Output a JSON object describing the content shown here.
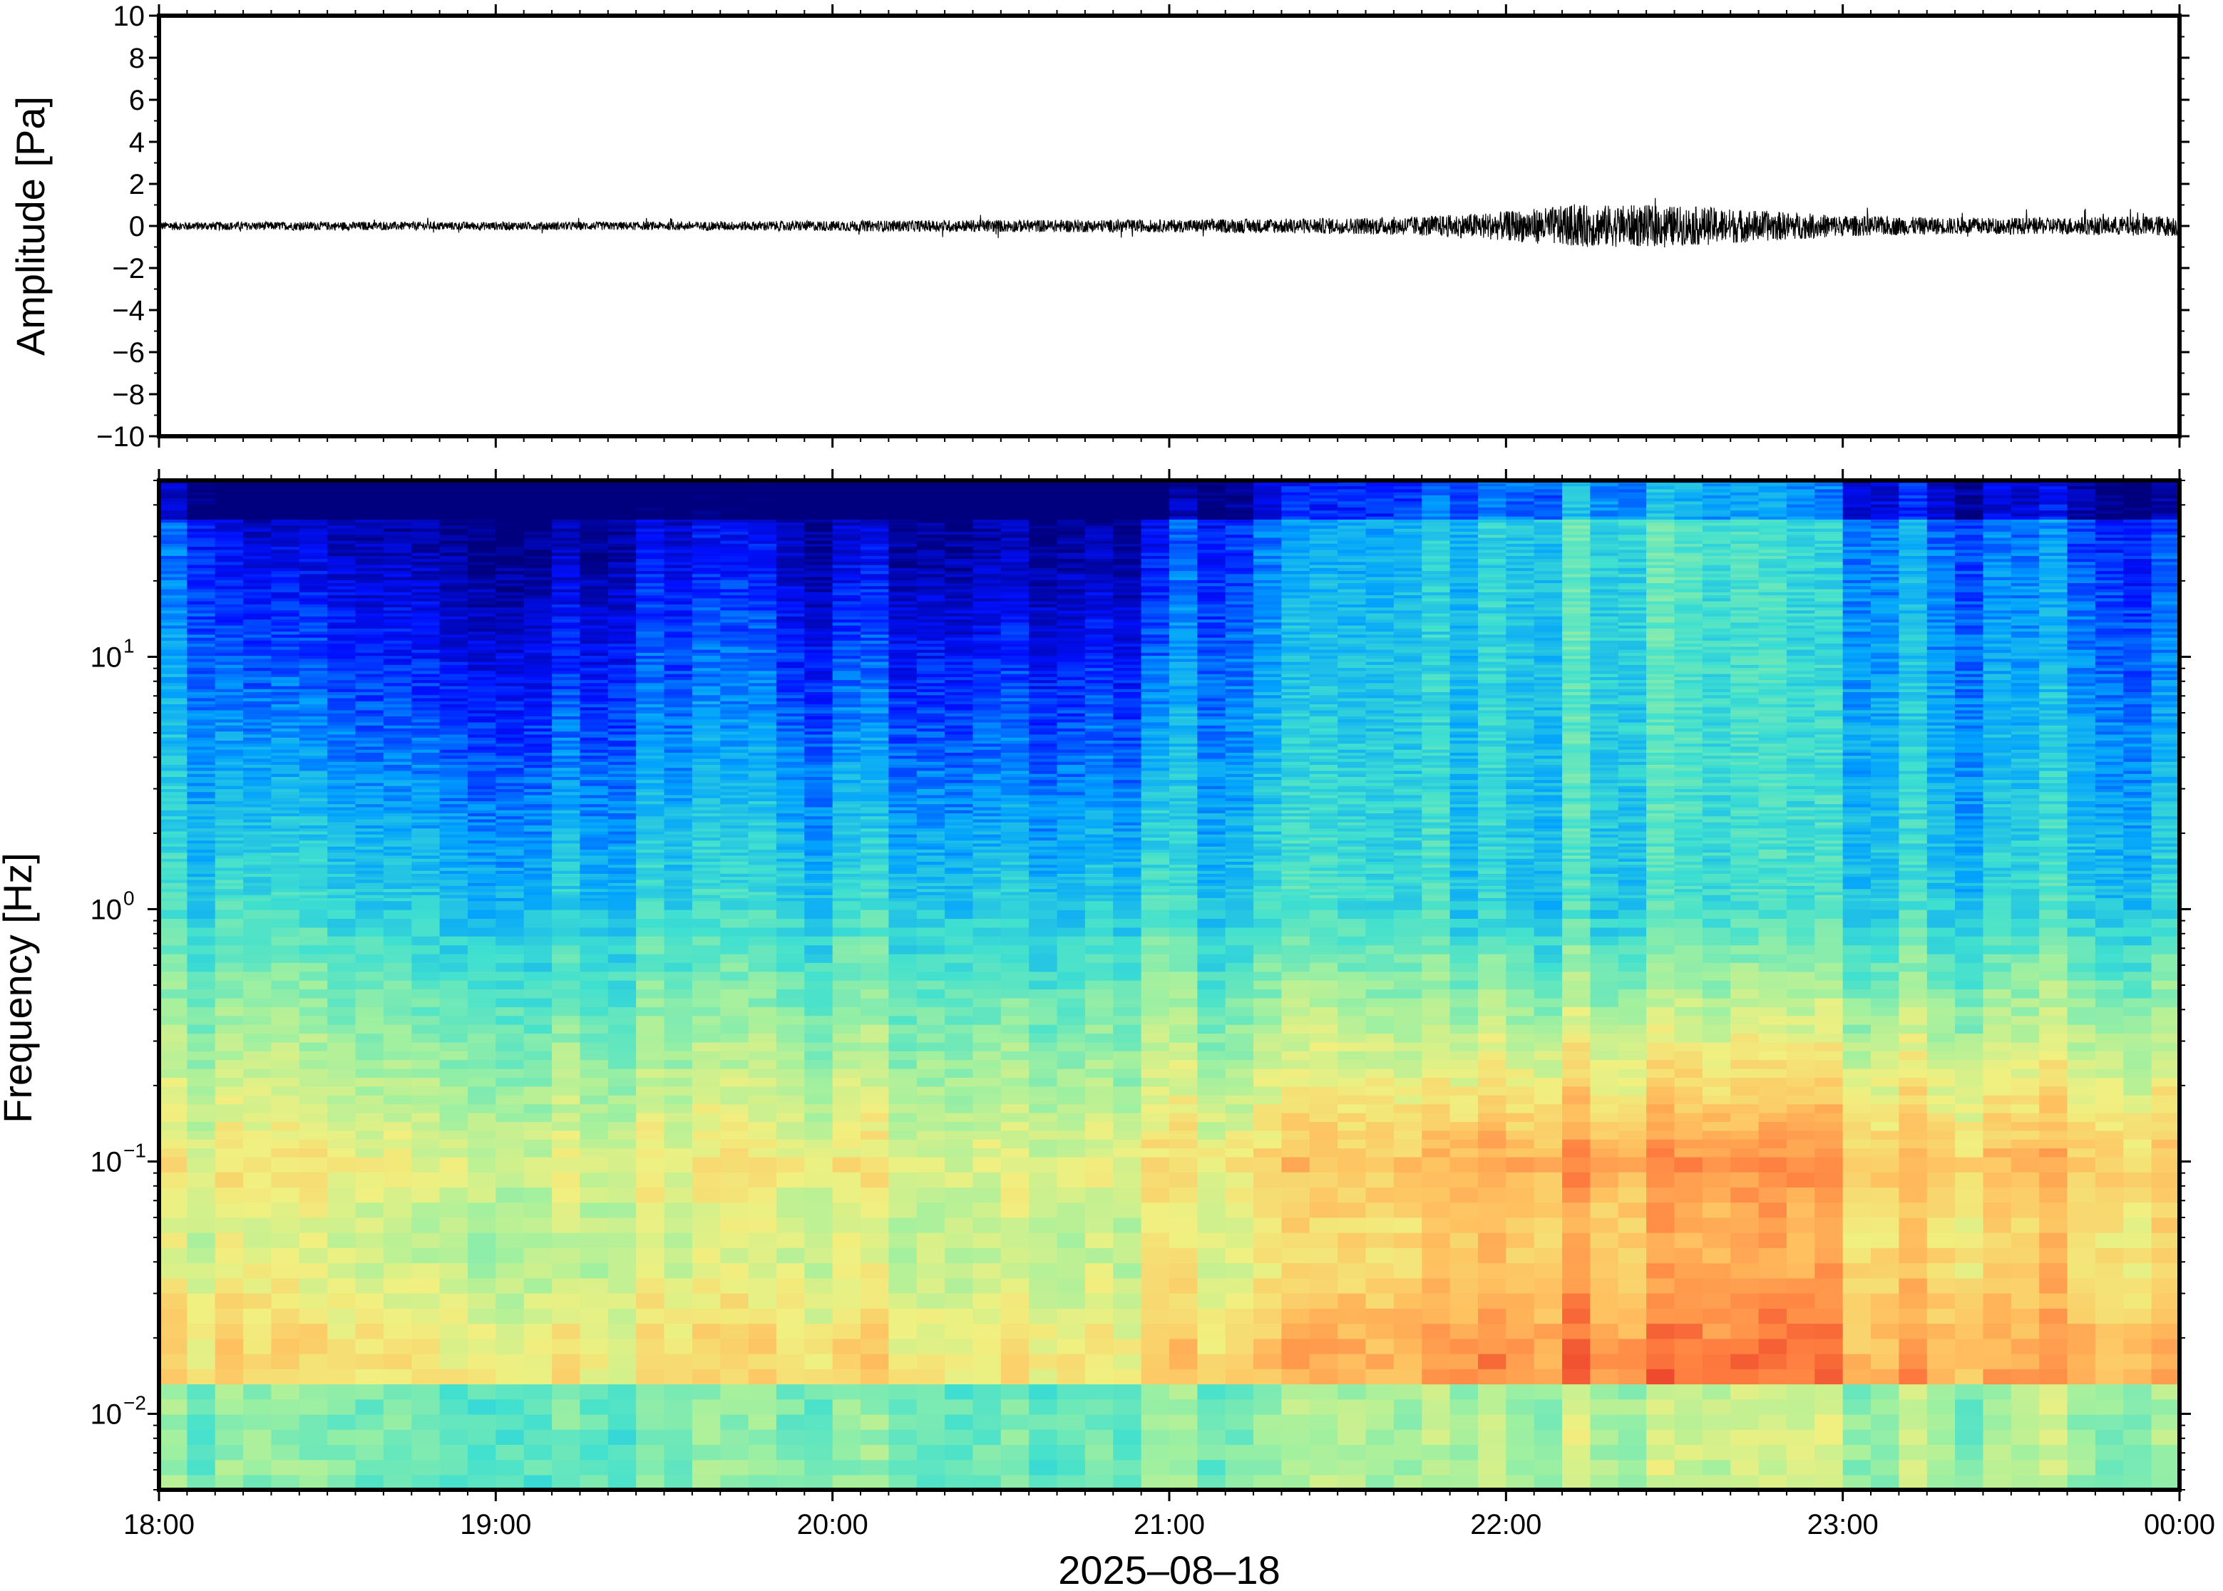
{
  "chart_data": [
    {
      "type": "line",
      "panel": "waveform",
      "ylabel": "Amplitude [Pa]",
      "ylim": [
        -10,
        10
      ],
      "yticks": [
        10,
        8,
        6,
        4,
        2,
        0,
        -2,
        -4,
        -6,
        -8,
        -10
      ],
      "ytick_labels": [
        "10",
        "8",
        "6",
        "4",
        "2",
        "0",
        "−2",
        "−4",
        "−6",
        "−8",
        "−10"
      ],
      "xlim_hours": [
        18,
        24
      ],
      "series": [
        {
          "envelope_time_hours": [
            18.0,
            18.5,
            19.0,
            19.5,
            20.0,
            20.5,
            21.0,
            21.3,
            21.6,
            21.8,
            22.0,
            22.2,
            22.4,
            22.6,
            22.8,
            23.0,
            23.3,
            23.6,
            24.0
          ],
          "envelope_peak_pa": [
            0.2,
            0.2,
            0.2,
            0.2,
            0.25,
            0.3,
            0.3,
            0.35,
            0.4,
            0.5,
            0.7,
            1.0,
            1.0,
            0.9,
            0.7,
            0.5,
            0.4,
            0.4,
            0.5
          ]
        }
      ],
      "color": "#000000"
    },
    {
      "type": "heatmap",
      "panel": "spectrogram",
      "ylabel": "Frequency [Hz]",
      "y_scale": "log",
      "ylim": [
        0.005,
        50
      ],
      "yticks": [
        0.01,
        0.1,
        1,
        10
      ],
      "ytick_labels": [
        {
          "base": "10",
          "exp": "−2"
        },
        {
          "base": "10",
          "exp": "−1"
        },
        {
          "base": "10",
          "exp": "0"
        },
        {
          "base": "10",
          "exp": "1"
        }
      ],
      "xlim_hours": [
        18,
        24
      ],
      "colormap": "jet",
      "colormap_stops": [
        "#00007f",
        "#0010ff",
        "#00a0ff",
        "#40e0d0",
        "#a0f0a0",
        "#f0f080",
        "#ffc060",
        "#ff8040",
        "#e02020"
      ],
      "summary": [
        {
          "period_hours": [
            18,
            21
          ],
          "high_freq_level": "low",
          "low_freq_level": "medium"
        },
        {
          "period_hours": [
            21,
            21.8
          ],
          "high_freq_level": "medium",
          "low_freq_level": "medium-high"
        },
        {
          "period_hours": [
            21.8,
            23.0
          ],
          "high_freq_level": "medium-high",
          "low_freq_level": "high"
        },
        {
          "period_hours": [
            23.0,
            24.0
          ],
          "high_freq_level": "medium",
          "low_freq_level": "high"
        }
      ]
    }
  ],
  "xaxis": {
    "ticks_hours": [
      18,
      19,
      20,
      21,
      22,
      23,
      24
    ],
    "tick_labels": [
      "18:00",
      "19:00",
      "20:00",
      "21:00",
      "22:00",
      "23:00",
      "00:00"
    ],
    "xlabel": "2025–08–18"
  }
}
